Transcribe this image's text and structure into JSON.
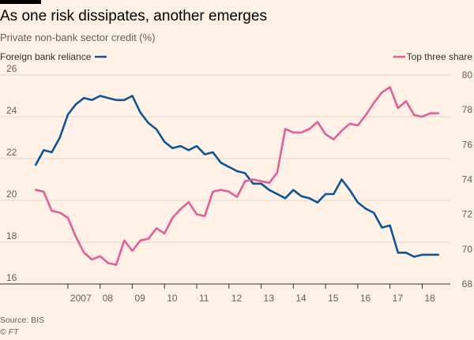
{
  "header": {
    "title": "As one risk dissipates, another emerges",
    "subtitle": "Private non-bank sector credit (%)"
  },
  "footer": {
    "source": "Source: BIS",
    "credit": "© FT"
  },
  "colors": {
    "background": "#fff1e5",
    "gridline": "#e3d7cc",
    "foreign": "#0f5499",
    "top3": "#e0609a"
  },
  "chart_data": {
    "type": "line",
    "dual_axis": true,
    "x_range": [
      2005.8,
      2018.75
    ],
    "x_tick_values": [
      2007,
      2008,
      2009,
      2010,
      2011,
      2012,
      2013,
      2014,
      2015,
      2016,
      2017,
      2018
    ],
    "x_tick_labels": [
      "2007",
      "08",
      "09",
      "10",
      "11",
      "12",
      "13",
      "14",
      "15",
      "16",
      "17",
      "18"
    ],
    "y_left": {
      "range": [
        16,
        26
      ],
      "ticks": [
        16,
        18,
        20,
        22,
        24,
        26
      ]
    },
    "y_right": {
      "range": [
        68,
        80
      ],
      "ticks": [
        68,
        70,
        72,
        74,
        76,
        78,
        80
      ]
    },
    "grid": true,
    "legend": {
      "foreign": "Foreign bank reliance",
      "top3": "Top three share"
    },
    "series": [
      {
        "name": "Foreign bank reliance",
        "axis": "left",
        "x": [
          2006.0,
          2006.25,
          2006.5,
          2006.75,
          2007.0,
          2007.25,
          2007.5,
          2007.75,
          2008.0,
          2008.25,
          2008.5,
          2008.75,
          2009.0,
          2009.25,
          2009.5,
          2009.75,
          2010.0,
          2010.25,
          2010.5,
          2010.75,
          2011.0,
          2011.25,
          2011.5,
          2011.75,
          2012.0,
          2012.25,
          2012.5,
          2012.75,
          2013.0,
          2013.25,
          2013.5,
          2013.75,
          2014.0,
          2014.25,
          2014.5,
          2014.75,
          2015.0,
          2015.25,
          2015.5,
          2015.75,
          2016.0,
          2016.25,
          2016.5,
          2016.75,
          2017.0,
          2017.25,
          2017.5,
          2017.75,
          2018.0,
          2018.25,
          2018.5
        ],
        "values": [
          21.7,
          22.4,
          22.3,
          23.0,
          24.1,
          24.6,
          24.9,
          24.8,
          25.0,
          24.9,
          24.8,
          24.8,
          25.0,
          24.2,
          23.7,
          23.4,
          22.8,
          22.5,
          22.6,
          22.4,
          22.6,
          22.2,
          22.3,
          21.8,
          21.6,
          21.4,
          21.3,
          20.8,
          20.8,
          20.5,
          20.3,
          20.1,
          20.5,
          20.2,
          20.1,
          19.9,
          20.3,
          20.3,
          21.0,
          20.5,
          19.9,
          19.6,
          19.4,
          18.7,
          18.8,
          17.5,
          17.5,
          17.3,
          17.4,
          17.4,
          17.4
        ]
      },
      {
        "name": "Top three share",
        "axis": "right",
        "x": [
          2006.0,
          2006.25,
          2006.5,
          2006.75,
          2007.0,
          2007.25,
          2007.5,
          2007.75,
          2008.0,
          2008.25,
          2008.5,
          2008.75,
          2009.0,
          2009.25,
          2009.5,
          2009.75,
          2010.0,
          2010.25,
          2010.5,
          2010.75,
          2011.0,
          2011.25,
          2011.5,
          2011.75,
          2012.0,
          2012.25,
          2012.5,
          2012.75,
          2013.0,
          2013.25,
          2013.5,
          2013.75,
          2014.0,
          2014.25,
          2014.5,
          2014.75,
          2015.0,
          2015.25,
          2015.5,
          2015.75,
          2016.0,
          2016.25,
          2016.5,
          2016.75,
          2017.0,
          2017.25,
          2017.5,
          2017.75,
          2018.0,
          2018.25,
          2018.5
        ],
        "values": [
          73.4,
          73.3,
          72.2,
          72.1,
          71.8,
          70.7,
          69.8,
          69.4,
          69.6,
          69.2,
          69.1,
          70.5,
          69.9,
          70.5,
          70.6,
          71.2,
          70.9,
          71.8,
          72.3,
          72.7,
          72.0,
          71.9,
          73.3,
          73.4,
          73.3,
          73.0,
          73.9,
          74.0,
          73.9,
          73.8,
          74.4,
          76.9,
          76.7,
          76.7,
          76.9,
          77.3,
          76.6,
          76.3,
          76.8,
          77.2,
          77.1,
          77.7,
          78.4,
          79.0,
          79.3,
          78.1,
          78.5,
          77.7,
          77.6,
          77.8,
          77.8
        ]
      }
    ]
  }
}
